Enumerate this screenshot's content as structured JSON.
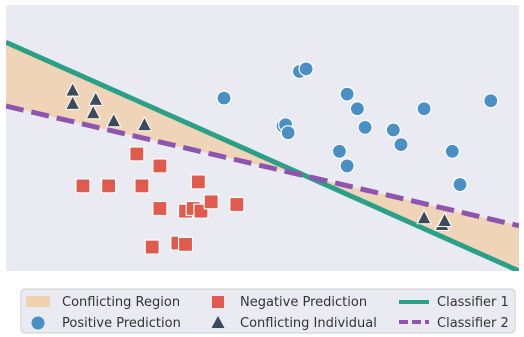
{
  "chart_data": {
    "type": "scatter",
    "title": "",
    "xlabel": "",
    "ylabel": "",
    "grid": false,
    "axes_visible": false,
    "background": "#eaeaf2",
    "xlim": [
      0,
      10
    ],
    "ylim": [
      0,
      10
    ],
    "legend": {
      "placement": "bottom",
      "entries": [
        {
          "key": "region",
          "label": "Conflicting Region"
        },
        {
          "key": "positive",
          "label": "Positive Prediction"
        },
        {
          "key": "negative",
          "label": "Negative Prediction"
        },
        {
          "key": "conflicting",
          "label": "Conflicting Individual"
        },
        {
          "key": "classifier1",
          "label": "Classifier 1"
        },
        {
          "key": "classifier2",
          "label": "Classifier 2"
        }
      ]
    },
    "colors": {
      "positive": "#4a90c4",
      "negative": "#e05a4e",
      "conflicting": "#3d4a5c",
      "region": "#f0d2b0",
      "classifier1": "#2aa087",
      "classifier2": "#8e55b0"
    },
    "classifier1": {
      "points": [
        [
          0,
          8.6
        ],
        [
          10,
          0
        ]
      ]
    },
    "classifier2": {
      "points": [
        [
          0,
          6.2
        ],
        [
          10,
          1.7
        ]
      ]
    },
    "positive": {
      "x": [
        4.25,
        5.72,
        5.85,
        5.4,
        5.45,
        5.5,
        6.65,
        6.85,
        7.0,
        6.5,
        6.65,
        7.55,
        7.7,
        8.15,
        8.7,
        9.45,
        8.85
      ],
      "y": [
        6.5,
        7.5,
        7.6,
        5.45,
        5.5,
        5.2,
        6.65,
        6.1,
        5.4,
        4.5,
        3.95,
        5.3,
        4.75,
        6.1,
        4.5,
        6.4,
        3.25
      ]
    },
    "negative": {
      "x": [
        2.55,
        3.0,
        1.5,
        2.0,
        2.65,
        3.75,
        3.0,
        3.5,
        3.65,
        3.8,
        4.0,
        4.5,
        3.35,
        3.5,
        2.85
      ],
      "y": [
        4.4,
        3.95,
        3.2,
        3.2,
        3.2,
        3.35,
        2.35,
        2.25,
        2.35,
        2.25,
        2.6,
        2.5,
        1.05,
        1.0,
        0.9
      ]
    },
    "conflicting": {
      "x": [
        1.3,
        1.3,
        1.75,
        1.7,
        2.1,
        2.7,
        8.15,
        8.5,
        8.55
      ],
      "y": [
        6.8,
        6.3,
        6.45,
        5.95,
        5.65,
        5.5,
        2.0,
        1.75,
        1.9
      ]
    }
  }
}
